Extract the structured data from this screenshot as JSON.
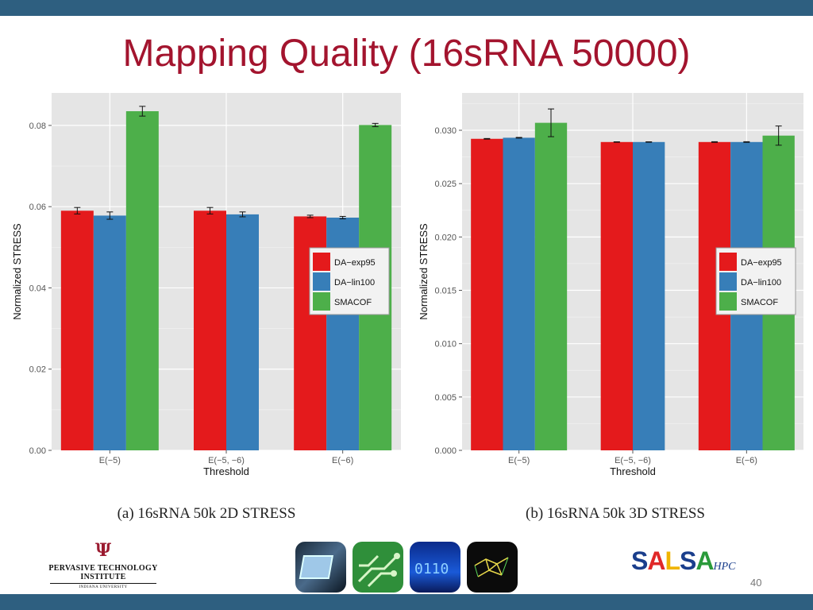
{
  "slide": {
    "title": "Mapping Quality (16sRNA 50000)",
    "page_number": "40"
  },
  "captions": {
    "left": "(a) 16sRNA 50k 2D STRESS",
    "right": "(b) 16sRNA 50k 3D STRESS"
  },
  "logos": {
    "pti_mark": "Ψ",
    "pti_line1": "PERVASIVE TECHNOLOGY",
    "pti_line2": "INSTITUTE",
    "pti_line3": "INDIANA UNIVERSITY",
    "salsa_letters": [
      "S",
      "A",
      "L",
      "S",
      "A"
    ],
    "salsa_colors": [
      "#1a3e8c",
      "#e02828",
      "#f0b400",
      "#1a3e8c",
      "#2a9a3a"
    ],
    "salsa_hpc": "HPC"
  },
  "colors": {
    "DA-exp95": "#e41a1c",
    "DA-lin100": "#377eb8",
    "SMACOF": "#4daf4a",
    "panel_bg": "#e5e5e5",
    "grid": "#ffffff",
    "topbar": "#2e5f80",
    "title": "#a3142e"
  },
  "chart_data": [
    {
      "type": "bar",
      "title": "",
      "caption": "(a) 16sRNA 50k 2D STRESS",
      "xlabel": "Threshold",
      "ylabel": "Normalized STRESS",
      "categories": [
        "E(−5)",
        "E(−5, −6)",
        "E(−6)"
      ],
      "ylim": [
        0,
        0.088
      ],
      "yticks": [
        0,
        0.02,
        0.04,
        0.06,
        0.08
      ],
      "ytick_labels": [
        "0.00",
        "0.02",
        "0.04",
        "0.06",
        "0.08"
      ],
      "grid": true,
      "legend_position": "right-middle",
      "series": [
        {
          "name": "DA−exp95",
          "values": [
            0.059,
            0.059,
            0.0576
          ],
          "errors": [
            0.0008,
            0.0008,
            0.0003
          ]
        },
        {
          "name": "DA−lin100",
          "values": [
            0.0578,
            0.0581,
            0.0573
          ],
          "errors": [
            0.0009,
            0.0006,
            0.0003
          ]
        },
        {
          "name": "SMACOF",
          "values": [
            0.0835,
            null,
            0.0801
          ],
          "errors": [
            0.0012,
            null,
            0.0004
          ]
        }
      ]
    },
    {
      "type": "bar",
      "title": "",
      "caption": "(b) 16sRNA 50k 3D STRESS",
      "xlabel": "Threshold",
      "ylabel": "Normalized STRESS",
      "categories": [
        "E(−5)",
        "E(−5, −6)",
        "E(−6)"
      ],
      "ylim": [
        0,
        0.0335
      ],
      "yticks": [
        0,
        0.005,
        0.01,
        0.015,
        0.02,
        0.025,
        0.03
      ],
      "ytick_labels": [
        "0.000",
        "0.005",
        "0.010",
        "0.015",
        "0.020",
        "0.025",
        "0.030"
      ],
      "grid": true,
      "legend_position": "right-middle",
      "series": [
        {
          "name": "DA−exp95",
          "values": [
            0.0292,
            0.0289,
            0.0289
          ],
          "errors": [
            3e-05,
            2e-05,
            3e-05
          ]
        },
        {
          "name": "DA−lin100",
          "values": [
            0.0293,
            0.0289,
            0.0289
          ],
          "errors": [
            3e-05,
            2e-05,
            3e-05
          ]
        },
        {
          "name": "SMACOF",
          "values": [
            0.0307,
            null,
            0.0295
          ],
          "errors": [
            0.0013,
            null,
            0.0009
          ]
        }
      ]
    }
  ]
}
